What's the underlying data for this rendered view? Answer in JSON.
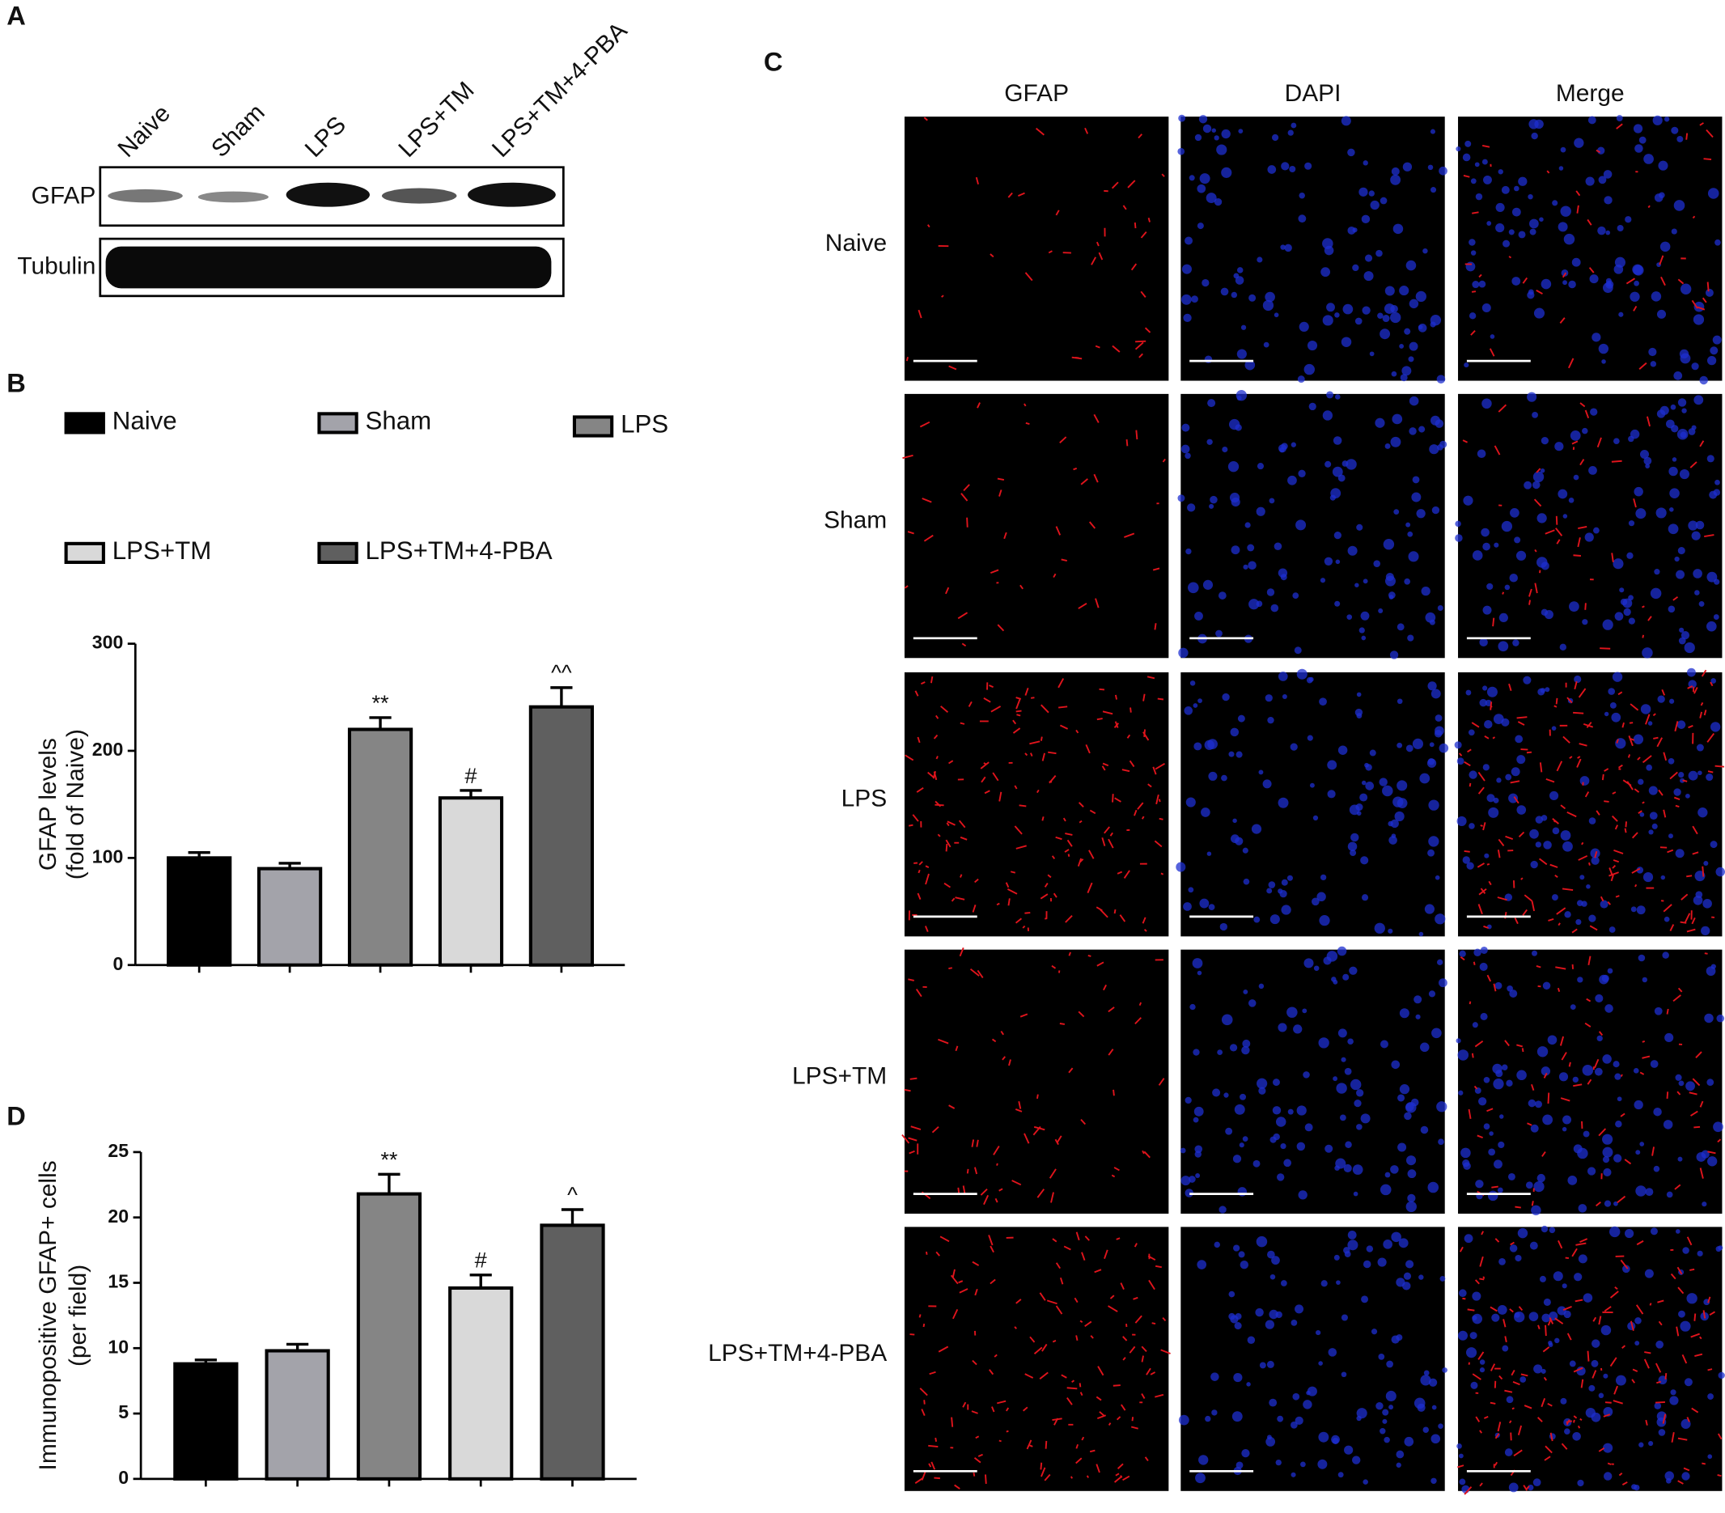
{
  "panel_labels": [
    "A",
    "B",
    "C",
    "D"
  ],
  "blot": {
    "lanes": [
      "Naive",
      "Sham",
      "LPS",
      "LPS+TM",
      "LPS+TM+4-PBA"
    ],
    "rows": [
      "GFAP",
      "Tubulin"
    ]
  },
  "imaging": {
    "columns": [
      "GFAP",
      "DAPI",
      "Merge"
    ],
    "rows": [
      "Naive",
      "Sham",
      "LPS",
      "LPS+TM",
      "LPS+TM+4-PBA"
    ]
  },
  "chart_data": [
    {
      "type": "bar",
      "ylabel": [
        "GFAP levels",
        "(fold of Naive)"
      ],
      "categories": [
        "Naive",
        "Sham",
        "LPS",
        "LPS+TM",
        "LPS+TM+4-PBA"
      ],
      "values": [
        100,
        90,
        220,
        156,
        241
      ],
      "errors": [
        5,
        5,
        11,
        7,
        18
      ],
      "annotations": [
        null,
        null,
        "**",
        "#",
        "^^"
      ],
      "colors": [
        "#000000",
        "#a3a3aa",
        "#858585",
        "#d9d9d9",
        "#5f5f5f"
      ],
      "ylim": [
        0,
        300
      ],
      "yticks": [
        0,
        100,
        200,
        300
      ],
      "legend": true
    },
    {
      "type": "bar",
      "ylabel": [
        "Immunopositive  GFAP+ cells",
        "(per field)"
      ],
      "categories": [
        null,
        null,
        null,
        null,
        null
      ],
      "values": [
        8.8,
        9.8,
        21.8,
        14.6,
        19.4
      ],
      "errors": [
        0.3,
        0.5,
        1.5,
        1.0,
        1.2
      ],
      "annotations": [
        null,
        null,
        "**",
        "#",
        "^"
      ],
      "colors": [
        "#000000",
        "#a3a3aa",
        "#858585",
        "#d9d9d9",
        "#5f5f5f"
      ],
      "ylim": [
        0,
        25
      ],
      "yticks": [
        0,
        5,
        10,
        15,
        20,
        25
      ],
      "legend": false
    }
  ]
}
